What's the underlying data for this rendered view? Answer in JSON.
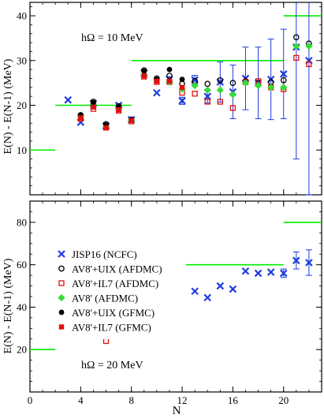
{
  "chart_data": [
    {
      "type": "scatter",
      "annotation": "hΩ = 10 MeV",
      "ylabel": "E(N) - E(N-1)  (MeV)",
      "xlabel": "",
      "xlim": [
        0,
        23
      ],
      "ylim": [
        0,
        43
      ],
      "xticks": [
        0,
        4,
        8,
        12,
        16,
        20
      ],
      "xticklabels": [
        "",
        "",
        "",
        "",
        "",
        ""
      ],
      "yticks": [
        10,
        20,
        30,
        40
      ],
      "yticklabels": [
        "10",
        "20",
        "30",
        "40"
      ],
      "minor_x_step": 1,
      "minor_y_step": 2,
      "legend_position": "lower-left",
      "reference_lines": [
        {
          "x": [
            0,
            2
          ],
          "y": 10
        },
        {
          "x": [
            2,
            8
          ],
          "y": 20
        },
        {
          "x": [
            8,
            20
          ],
          "y": 30
        },
        {
          "x": [
            20,
            23
          ],
          "y": 40
        }
      ],
      "reference_color": "#00ee00",
      "series": [
        {
          "name": "JISP16 (NCFC)",
          "marker": "x",
          "color": "#1f3de0",
          "x": [
            3,
            4,
            5,
            6,
            7,
            8,
            9,
            10,
            11,
            12,
            13,
            14,
            15,
            16,
            17,
            18,
            19,
            20,
            21,
            22
          ],
          "y": [
            21.2,
            16.2,
            20.4,
            15.4,
            20.0,
            16.8,
            27.2,
            22.8,
            25.8,
            21.0,
            25.7,
            22.0,
            25.2,
            23.0,
            26.0,
            25.0,
            25.8,
            27.0,
            33.0,
            30.0
          ],
          "err": [
            0,
            0,
            0,
            0,
            0,
            0,
            0,
            0,
            0.6,
            0.8,
            1.0,
            1.5,
            4.5,
            6.0,
            7.0,
            8.0,
            9.0,
            10.0,
            25.0,
            30.0
          ]
        },
        {
          "name": "AV8'+UIX (AFDMC)",
          "marker": "circle-open",
          "color": "#000000",
          "x": [
            4,
            5,
            6,
            7,
            8,
            9,
            10,
            11,
            12,
            13,
            14,
            15,
            16,
            17,
            18,
            19,
            20,
            21,
            22
          ],
          "y": [
            17.8,
            20.8,
            15.8,
            19.8,
            16.8,
            27.8,
            26.0,
            26.6,
            24.8,
            25.4,
            24.8,
            25.6,
            25.0,
            25.4,
            25.0,
            25.2,
            25.6,
            35.2,
            33.8
          ]
        },
        {
          "name": "AV8'+IL7 (AFDMC)",
          "marker": "square-open",
          "color": "#e01010",
          "x": [
            4,
            5,
            6,
            7,
            8,
            9,
            10,
            11,
            12,
            13,
            14,
            15,
            16,
            17,
            18,
            19,
            20,
            21,
            22
          ],
          "y": [
            17.0,
            19.2,
            15.0,
            18.8,
            16.4,
            26.4,
            25.2,
            25.2,
            22.8,
            22.6,
            20.8,
            20.8,
            19.4,
            25.2,
            25.4,
            24.0,
            23.6,
            30.6,
            29.2
          ]
        },
        {
          "name": "AV8' (AFDMC)",
          "marker": "diamond",
          "color": "#33dd33",
          "x": [
            4,
            5,
            6,
            7,
            8,
            9,
            10,
            11,
            12,
            13,
            14,
            15,
            16,
            17,
            18,
            19,
            20,
            21,
            22
          ],
          "y": [
            17.6,
            20.2,
            15.2,
            19.2,
            16.6,
            26.8,
            25.6,
            25.2,
            23.6,
            24.4,
            23.4,
            23.4,
            22.4,
            25.0,
            24.4,
            24.0,
            24.0,
            33.2,
            33.2
          ]
        },
        {
          "name": "AV8'+UIX (GFMC)",
          "marker": "circle-filled",
          "color": "#000000",
          "x": [
            4,
            5,
            6,
            7,
            8,
            9,
            10,
            11,
            12
          ],
          "y": [
            17.8,
            20.6,
            15.6,
            19.6,
            16.8,
            27.6,
            25.8,
            28.0,
            25.8
          ]
        },
        {
          "name": "AV8'+IL7 (GFMC)",
          "marker": "square-filled",
          "color": "#e01010",
          "x": [
            4,
            5,
            6,
            7,
            8,
            9,
            10,
            11,
            12
          ],
          "y": [
            17.2,
            19.6,
            15.0,
            19.0,
            16.6,
            26.6,
            25.4,
            25.4,
            24.0
          ]
        }
      ]
    },
    {
      "type": "scatter",
      "annotation": "hΩ = 20 MeV",
      "ylabel": "E(N) - E(N-1)  (MeV)",
      "xlabel": "N",
      "xlim": [
        0,
        23
      ],
      "ylim": [
        0,
        90
      ],
      "xticks": [
        0,
        4,
        8,
        12,
        16,
        20
      ],
      "xticklabels": [
        "0",
        "4",
        "8",
        "12",
        "16",
        "20"
      ],
      "yticks": [
        20,
        40,
        60,
        80
      ],
      "yticklabels": [
        "20",
        "40",
        "60",
        "80"
      ],
      "minor_x_step": 1,
      "minor_y_step": 5,
      "reference_lines": [
        {
          "x": [
            0,
            2
          ],
          "y": 20
        },
        {
          "x": [
            2,
            8
          ],
          "y": 40
        },
        {
          "x": [
            8,
            20
          ],
          "y": 60
        },
        {
          "x": [
            20,
            23
          ],
          "y": 80
        }
      ],
      "reference_color": "#00ee00",
      "series": [
        {
          "name": "JISP16 (NCFC)",
          "marker": "x",
          "color": "#1f3de0",
          "x": [
            3,
            4,
            5,
            6,
            7,
            8,
            9,
            10,
            11,
            12,
            13,
            14,
            15,
            16,
            17,
            18,
            19,
            20,
            21,
            22
          ],
          "y": [
            41.5,
            35.5,
            36.5,
            31.0,
            43.0,
            40.5,
            48.5,
            49.5,
            49.5,
            47.0,
            47.5,
            44.5,
            50.0,
            48.5,
            57.0,
            56.0,
            56.5,
            56.0,
            62.0,
            61.0
          ],
          "err": [
            0,
            0,
            0,
            0,
            0,
            0,
            0,
            0,
            0,
            0,
            0,
            0,
            0,
            0,
            0,
            0,
            0,
            2.0,
            4.0,
            6.0
          ]
        },
        {
          "name": "AV8'+UIX (AFDMC)",
          "marker": "circle-open",
          "color": "#000000",
          "x": [
            4,
            5,
            6,
            7,
            8,
            9,
            10
          ],
          "y": [
            38.5,
            38.5,
            36.5,
            43.5,
            41.5,
            56.0,
            56.5
          ]
        },
        {
          "name": "AV8'+IL7 (AFDMC)",
          "marker": "square-open",
          "color": "#e01010",
          "x": [
            4,
            5,
            6,
            7,
            8,
            9,
            10
          ],
          "y": [
            37.0,
            31.5,
            24.0,
            43.0,
            41.0,
            49.0,
            52.0
          ]
        },
        {
          "name": "AV8' (AFDMC)",
          "marker": "diamond",
          "color": "#33dd33",
          "x": [
            4,
            5,
            6,
            7,
            8,
            9,
            10
          ],
          "y": [
            39.0,
            38.0,
            35.0,
            39.5,
            39.0,
            54.0,
            55.0
          ]
        },
        {
          "name": "AV8'+UIX (GFMC)",
          "marker": "circle-filled",
          "color": "#000000",
          "x": [],
          "y": []
        },
        {
          "name": "AV8'+IL7 (GFMC)",
          "marker": "square-filled",
          "color": "#e01010",
          "x": [],
          "y": []
        }
      ]
    }
  ]
}
